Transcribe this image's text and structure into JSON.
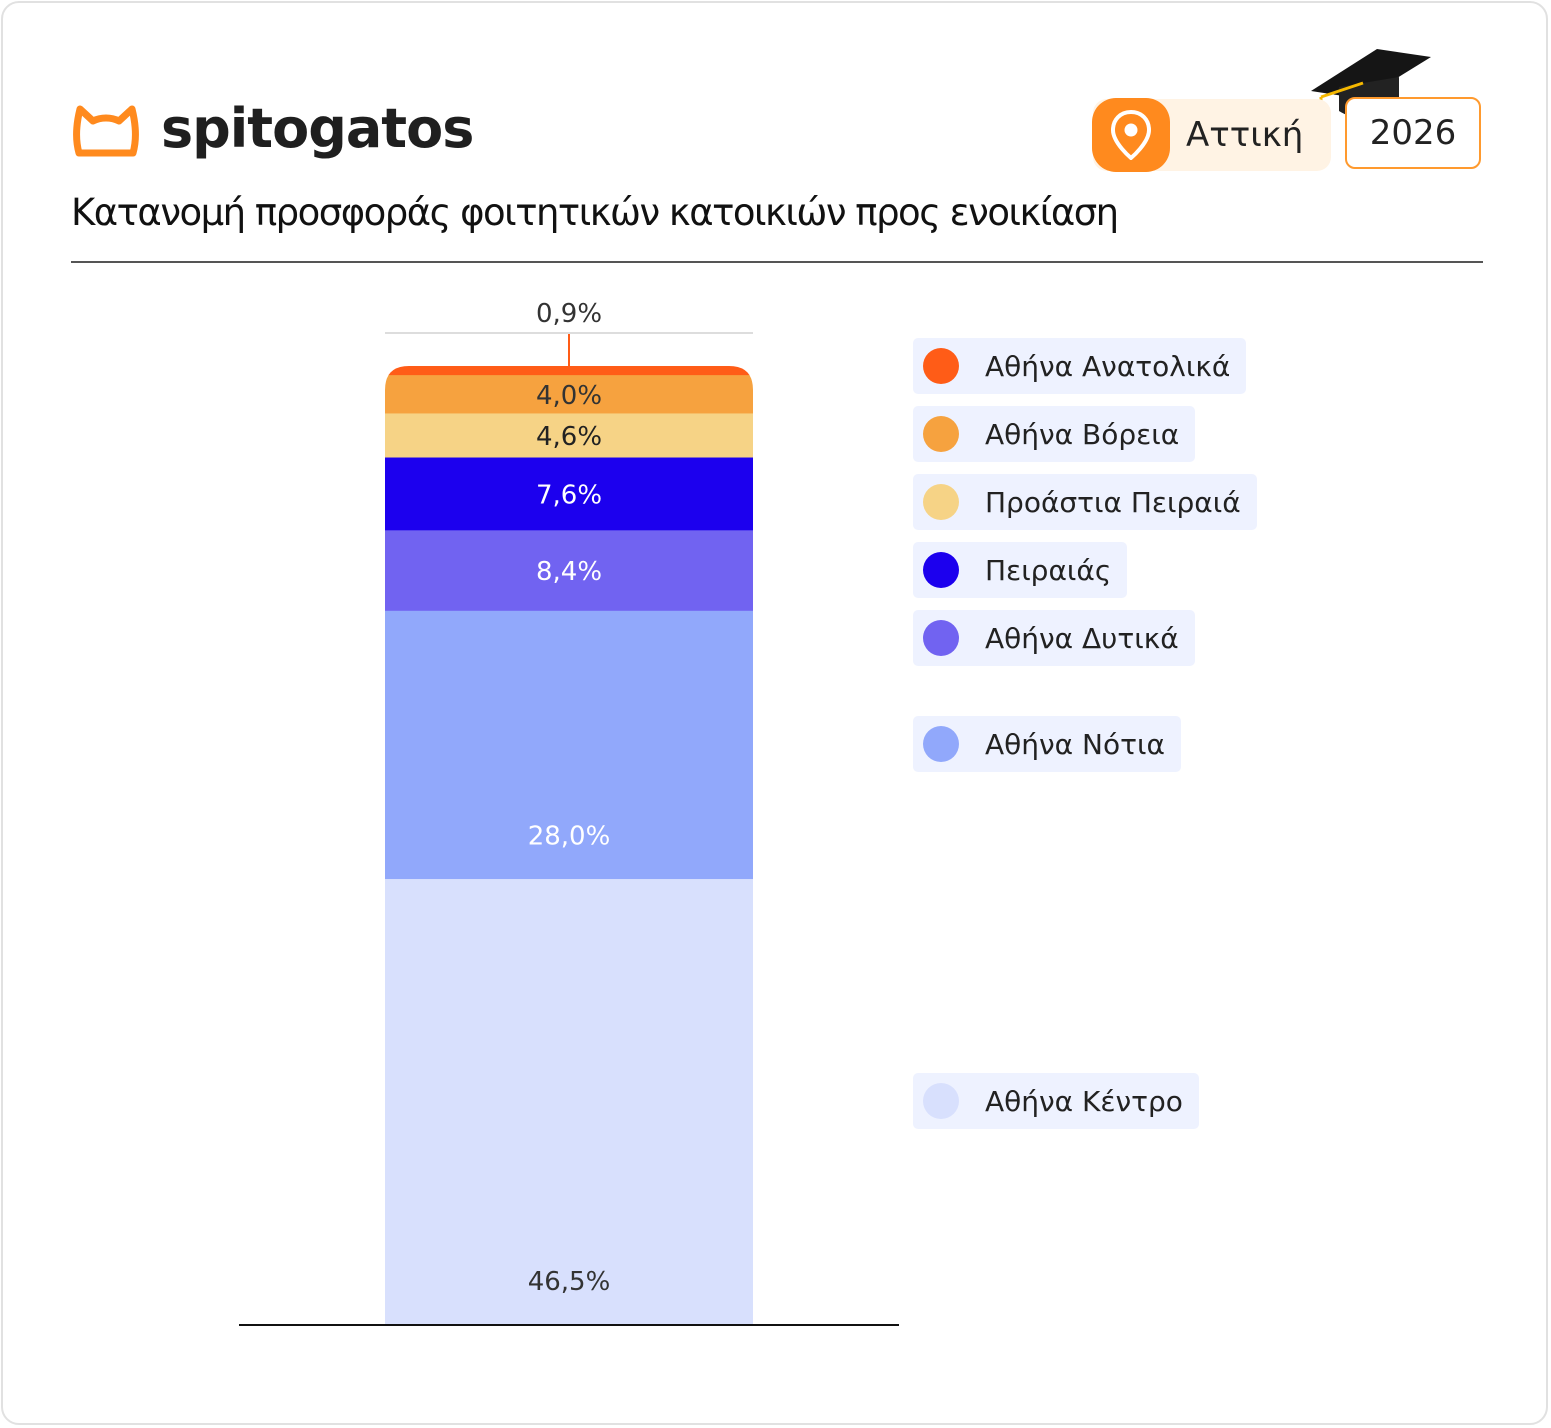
{
  "brand": {
    "name": "spitogatos"
  },
  "header": {
    "title": "Κατανομή προσφοράς φοιτητικών κατοικιών προς ενοικίαση",
    "region": "Αττική",
    "year": "2026"
  },
  "colors": {
    "brand_orange": "#ff8a1e",
    "border_orange": "#ff9a2e"
  },
  "icons": {
    "logo": "cat-face-icon",
    "region": "location-pin-icon",
    "decoration": "graduation-cap-icon"
  },
  "chart_data": {
    "type": "bar",
    "stacked": true,
    "unit": "%",
    "categories": [
      ""
    ],
    "series": [
      {
        "name": "Αθήνα Κέντρο",
        "values": [
          46.5
        ],
        "label": "46,5%",
        "color": "#d8e0fd",
        "label_color": "#333333"
      },
      {
        "name": "Αθήνα Νότια",
        "values": [
          28.0
        ],
        "label": "28,0%",
        "color": "#91a8fb",
        "label_color": "#ffffff"
      },
      {
        "name": "Αθήνα Δυτικά",
        "values": [
          8.4
        ],
        "label": "8,4%",
        "color": "#7163f1",
        "label_color": "#ffffff"
      },
      {
        "name": "Πειραιάς",
        "values": [
          7.6
        ],
        "label": "7,6%",
        "color": "#1c00ee",
        "label_color": "#ffffff"
      },
      {
        "name": "Προάστια Πειραιά",
        "values": [
          4.6
        ],
        "label": "4,6%",
        "color": "#f6d386",
        "label_color": "#222222"
      },
      {
        "name": "Αθήνα Βόρεια",
        "values": [
          4.0
        ],
        "label": "4,0%",
        "color": "#f6a23f",
        "label_color": "#333333"
      },
      {
        "name": "Αθήνα Ανατολικά",
        "values": [
          0.9
        ],
        "label": "0,9%",
        "color": "#ff5c17",
        "label_color": "#333333"
      }
    ],
    "ylim": [
      0,
      100
    ],
    "legend": "right",
    "grid": false
  }
}
